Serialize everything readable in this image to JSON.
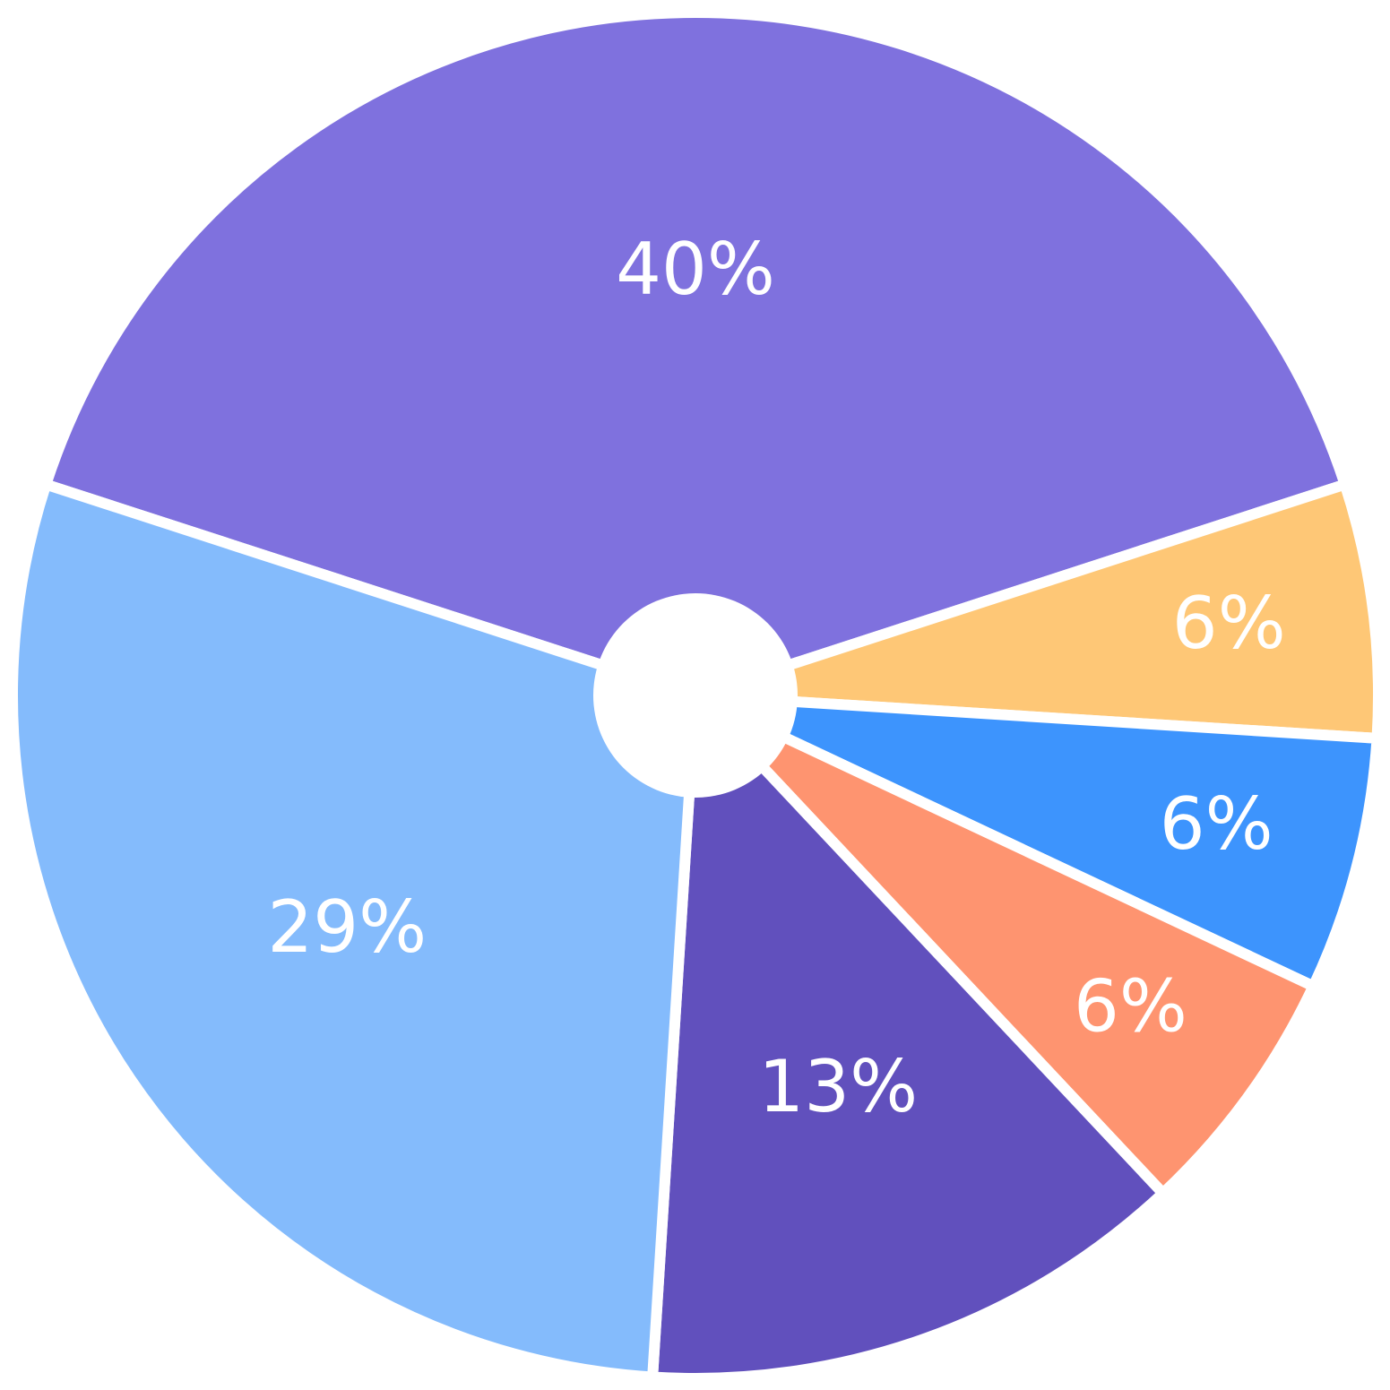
{
  "chart_data": {
    "type": "pie",
    "values": [
      40,
      6,
      6,
      6,
      13,
      29
    ],
    "value_labels": [
      "40%",
      "6%",
      "6%",
      "6%",
      "13%",
      "29%"
    ],
    "colors": [
      "#7f71de",
      "#fec776",
      "#3d94fd",
      "#fe9470",
      "#6150bd",
      "#84bbfc"
    ]
  }
}
